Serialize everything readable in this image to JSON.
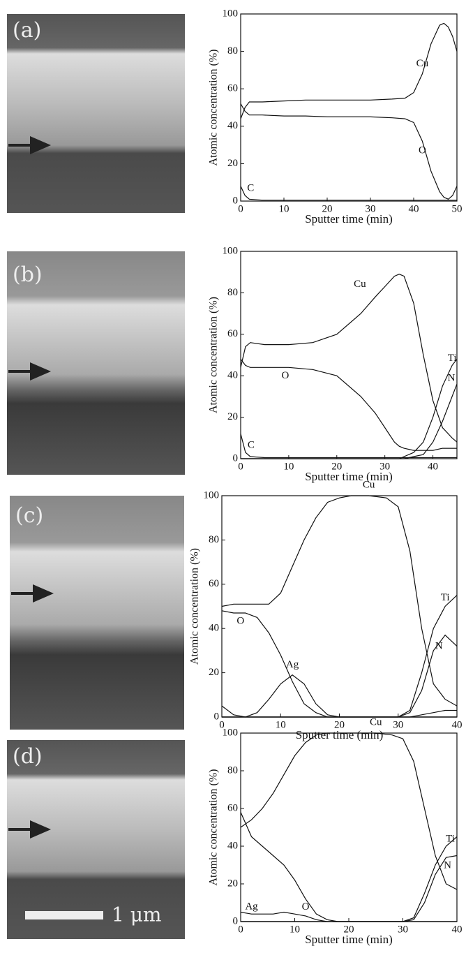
{
  "panels": [
    "(a)",
    "(b)",
    "(c)",
    "(d)"
  ],
  "scale_bar": "1 μm",
  "chart_data": [
    {
      "type": "line",
      "xlabel": "Sputter time (min)",
      "ylabel": "Atomic concentration (%)",
      "x": [
        0,
        1,
        2,
        5,
        10,
        15,
        20,
        25,
        30,
        35,
        38,
        40,
        42,
        44,
        46,
        47,
        48,
        49,
        50
      ],
      "xlim": [
        0,
        50
      ],
      "xticks": [
        0,
        10,
        20,
        30,
        40,
        50
      ],
      "ylim": [
        0,
        100
      ],
      "yticks": [
        0,
        20,
        40,
        60,
        80,
        100
      ],
      "series": [
        {
          "name": "Cu",
          "color": "#111111",
          "values": [
            44,
            50,
            53,
            53,
            53.5,
            54,
            54,
            54,
            54,
            54.5,
            55,
            58,
            68,
            84,
            94,
            95,
            93,
            88,
            80
          ]
        },
        {
          "name": "O",
          "color": "#111111",
          "values": [
            52,
            48,
            46,
            46,
            45.5,
            45.5,
            45,
            45,
            45,
            44.5,
            44,
            42,
            32,
            16,
            5,
            2,
            1,
            3,
            8
          ]
        },
        {
          "name": "C",
          "color": "#111111",
          "values": [
            8,
            3,
            1,
            0.5,
            0.5,
            0.5,
            0.5,
            0.5,
            0.5,
            0.5,
            0.5,
            0.5,
            0.5,
            0.5,
            0.5,
            0.5,
            0.5,
            0.5,
            0.5
          ]
        }
      ]
    },
    {
      "type": "line",
      "xlabel": "Sputter time (min)",
      "ylabel": "Atomic concentration (%)",
      "x": [
        0,
        1,
        2,
        5,
        10,
        15,
        20,
        25,
        28,
        30,
        32,
        33,
        34,
        36,
        38,
        40,
        42,
        44,
        45
      ],
      "xlim": [
        0,
        45
      ],
      "xticks": [
        0,
        10,
        20,
        30,
        40
      ],
      "ylim": [
        0,
        100
      ],
      "yticks": [
        0,
        20,
        40,
        60,
        80,
        100
      ],
      "series": [
        {
          "name": "Cu",
          "color": "#111111",
          "values": [
            44,
            54,
            56,
            55,
            55,
            56,
            60,
            70,
            78,
            83,
            88,
            89,
            88,
            75,
            50,
            28,
            15,
            10,
            8
          ]
        },
        {
          "name": "O",
          "color": "#111111",
          "values": [
            48,
            45,
            44,
            44,
            44,
            43,
            40,
            30,
            22,
            15,
            8,
            6,
            5,
            4,
            4,
            4,
            5,
            5,
            5
          ]
        },
        {
          "name": "Ti",
          "color": "#111111",
          "values": [
            0,
            0,
            0,
            0,
            0,
            0,
            0,
            0,
            0,
            0,
            0,
            0,
            1,
            3,
            8,
            20,
            35,
            45,
            48
          ]
        },
        {
          "name": "N",
          "color": "#111111",
          "values": [
            0,
            0,
            0,
            0,
            0,
            0,
            0,
            0,
            0,
            0,
            0,
            0,
            0,
            1,
            2,
            8,
            18,
            30,
            36
          ]
        },
        {
          "name": "C",
          "color": "#111111",
          "values": [
            12,
            3,
            1,
            0.5,
            0.5,
            0.5,
            0.5,
            0.5,
            0.5,
            0.5,
            0.5,
            0.5,
            0.5,
            0.5,
            0.5,
            0.5,
            0.5,
            0.5,
            0.5
          ]
        }
      ]
    },
    {
      "type": "line",
      "xlabel": "Sputter time (min)",
      "ylabel": "Atomic concentration (%)",
      "x": [
        0,
        2,
        4,
        6,
        8,
        10,
        12,
        14,
        16,
        18,
        20,
        22,
        25,
        28,
        30,
        32,
        34,
        36,
        38,
        40
      ],
      "xlim": [
        0,
        40
      ],
      "xticks": [
        0,
        10,
        20,
        30,
        40
      ],
      "ylim": [
        0,
        100
      ],
      "yticks": [
        0,
        20,
        40,
        60,
        80,
        100
      ],
      "series": [
        {
          "name": "Cu",
          "color": "#111111",
          "values": [
            50,
            51,
            51,
            51,
            51,
            56,
            68,
            80,
            90,
            97,
            99,
            100,
            100,
            99,
            95,
            75,
            40,
            15,
            8,
            5
          ]
        },
        {
          "name": "O",
          "color": "#111111",
          "values": [
            48,
            47,
            47,
            45,
            38,
            28,
            16,
            6,
            2,
            0,
            0,
            0,
            0,
            0,
            0,
            0,
            0,
            0,
            0,
            0
          ]
        },
        {
          "name": "Ag",
          "color": "#111111",
          "values": [
            0,
            0,
            0,
            2,
            8,
            15,
            19,
            15,
            6,
            1,
            0,
            0,
            0,
            0,
            0,
            0,
            0,
            0,
            0,
            0
          ]
        },
        {
          "name": "Ti",
          "color": "#111111",
          "values": [
            0,
            0,
            0,
            0,
            0,
            0,
            0,
            0,
            0,
            0,
            0,
            0,
            0,
            0,
            0,
            3,
            20,
            40,
            50,
            55
          ]
        },
        {
          "name": "N",
          "color": "#111111",
          "values": [
            0,
            0,
            0,
            0,
            0,
            0,
            0,
            0,
            0,
            0,
            0,
            0,
            0,
            0,
            0,
            2,
            12,
            30,
            37,
            32
          ]
        },
        {
          "color": "#111111",
          "values": [
            5,
            1,
            0,
            0,
            0,
            0,
            0,
            0,
            0,
            0,
            0,
            0,
            0,
            0,
            0,
            0,
            1,
            2,
            3,
            3
          ]
        }
      ]
    },
    {
      "type": "line",
      "xlabel": "Sputter time (min)",
      "ylabel": "Atomic concentration (%)",
      "x": [
        0,
        2,
        4,
        6,
        8,
        10,
        12,
        14,
        16,
        18,
        20,
        22,
        25,
        28,
        30,
        32,
        34,
        36,
        38,
        40
      ],
      "xlim": [
        0,
        40
      ],
      "xticks": [
        0,
        10,
        20,
        30,
        40
      ],
      "ylim": [
        0,
        100
      ],
      "yticks": [
        0,
        20,
        40,
        60,
        80,
        100
      ],
      "series": [
        {
          "name": "Cu",
          "color": "#111111",
          "values": [
            50,
            54,
            60,
            68,
            78,
            88,
            95,
            99,
            100,
            100,
            100,
            100,
            100,
            99,
            97,
            85,
            60,
            35,
            20,
            17
          ]
        },
        {
          "name": "O",
          "color": "#111111",
          "values": [
            58,
            45,
            40,
            35,
            30,
            22,
            12,
            4,
            1,
            0,
            0,
            0,
            0,
            0,
            0,
            0,
            0,
            0,
            0,
            0
          ]
        },
        {
          "name": "Ag",
          "color": "#111111",
          "values": [
            5,
            4,
            4,
            4,
            5,
            4,
            3,
            1,
            0,
            0,
            0,
            0,
            0,
            0,
            0,
            0,
            0,
            0,
            0,
            0
          ]
        },
        {
          "name": "Ti",
          "color": "#111111",
          "values": [
            0,
            0,
            0,
            0,
            0,
            0,
            0,
            0,
            0,
            0,
            0,
            0,
            0,
            0,
            0,
            2,
            15,
            30,
            40,
            45
          ]
        },
        {
          "name": "N",
          "color": "#111111",
          "values": [
            0,
            0,
            0,
            0,
            0,
            0,
            0,
            0,
            0,
            0,
            0,
            0,
            0,
            0,
            0,
            1,
            10,
            25,
            34,
            35
          ]
        }
      ]
    }
  ]
}
